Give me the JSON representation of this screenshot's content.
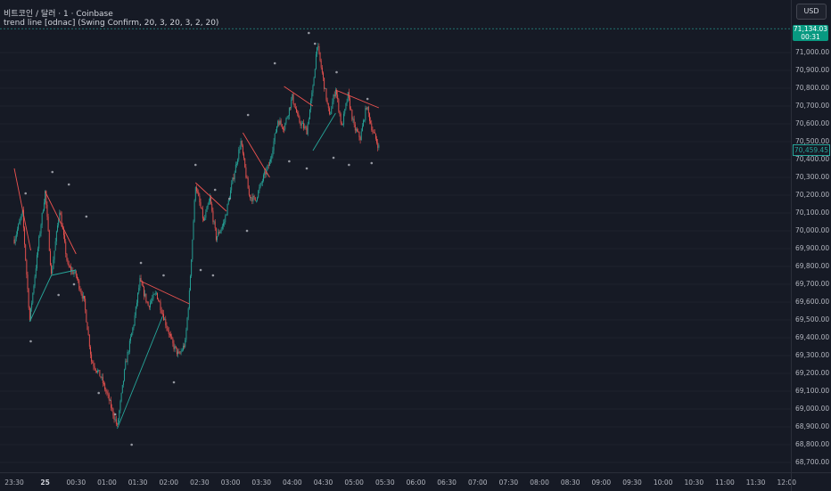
{
  "legend": {
    "symbol": "비트코인 / 달러 · 1 · Coinbase",
    "indicator": "trend line [odnac] (Swing Confirm, 20, 3, 20, 3, 2, 20)"
  },
  "currency_button": "USD",
  "price_badge": {
    "price": "71,134.03",
    "countdown": "00:31"
  },
  "last_price_badge": "70,459.45",
  "colors": {
    "background": "#161a25",
    "up": "#26a69a",
    "down": "#ef5350",
    "marker": "#9598a1",
    "badge": "#089981"
  },
  "price_axis": {
    "ticks": [
      "71,000.00",
      "70,900.00",
      "70,800.00",
      "70,700.00",
      "70,600.00",
      "70,500.00",
      "70,400.00",
      "70,300.00",
      "70,200.00",
      "70,100.00",
      "70,000.00",
      "69,900.00",
      "69,800.00",
      "69,700.00",
      "69,600.00",
      "69,500.00",
      "69,400.00",
      "69,300.00",
      "69,200.00",
      "69,100.00",
      "69,000.00",
      "68,900.00",
      "68,800.00",
      "68,700.00"
    ]
  },
  "time_axis": {
    "ticks": [
      "23:30",
      "25",
      "00:30",
      "01:00",
      "01:30",
      "02:00",
      "02:30",
      "03:00",
      "03:30",
      "04:00",
      "04:30",
      "05:00",
      "05:30",
      "06:00",
      "06:30",
      "07:00",
      "07:30",
      "08:00",
      "08:30",
      "09:00",
      "09:30",
      "10:00",
      "10:30",
      "11:00",
      "11:30",
      "12:00"
    ],
    "bold_tick": "25"
  },
  "chart_data": {
    "type": "candlestick",
    "ylim": [
      68650,
      71150
    ],
    "start_time": "23:30",
    "minutes_per_tick": 30,
    "price_path": [
      [
        0,
        69950
      ],
      [
        8,
        70100
      ],
      [
        15,
        69500
      ],
      [
        24,
        69950
      ],
      [
        30,
        70220
      ],
      [
        36,
        69750
      ],
      [
        44,
        70120
      ],
      [
        52,
        69800
      ],
      [
        60,
        69750
      ],
      [
        68,
        69600
      ],
      [
        75,
        69270
      ],
      [
        84,
        69180
      ],
      [
        92,
        69050
      ],
      [
        100,
        68900
      ],
      [
        108,
        69250
      ],
      [
        116,
        69480
      ],
      [
        122,
        69720
      ],
      [
        130,
        69580
      ],
      [
        138,
        69650
      ],
      [
        146,
        69500
      ],
      [
        154,
        69360
      ],
      [
        160,
        69300
      ],
      [
        166,
        69370
      ],
      [
        170,
        69650
      ],
      [
        176,
        70260
      ],
      [
        184,
        70050
      ],
      [
        190,
        70180
      ],
      [
        196,
        69960
      ],
      [
        204,
        70050
      ],
      [
        212,
        70280
      ],
      [
        220,
        70500
      ],
      [
        228,
        70200
      ],
      [
        234,
        70170
      ],
      [
        242,
        70300
      ],
      [
        248,
        70380
      ],
      [
        256,
        70620
      ],
      [
        262,
        70580
      ],
      [
        270,
        70750
      ],
      [
        276,
        70620
      ],
      [
        284,
        70560
      ],
      [
        290,
        70800
      ],
      [
        294,
        71050
      ],
      [
        300,
        70850
      ],
      [
        306,
        70640
      ],
      [
        312,
        70800
      ],
      [
        318,
        70580
      ],
      [
        324,
        70760
      ],
      [
        330,
        70580
      ],
      [
        336,
        70520
      ],
      [
        342,
        70700
      ],
      [
        348,
        70560
      ],
      [
        354,
        70470
      ]
    ],
    "swing_highs": [
      [
        11,
        70210
      ],
      [
        37,
        70330
      ],
      [
        53,
        70260
      ],
      [
        70,
        70080
      ],
      [
        123,
        69820
      ],
      [
        145,
        69750
      ],
      [
        176,
        70370
      ],
      [
        195,
        70230
      ],
      [
        209,
        70180
      ],
      [
        227,
        70650
      ],
      [
        253,
        70940
      ],
      [
        286,
        71110
      ],
      [
        292,
        71050
      ],
      [
        313,
        70890
      ],
      [
        343,
        70740
      ]
    ],
    "swing_lows": [
      [
        16,
        69380
      ],
      [
        43,
        69640
      ],
      [
        58,
        69700
      ],
      [
        82,
        69090
      ],
      [
        98,
        68970
      ],
      [
        114,
        68800
      ],
      [
        155,
        69150
      ],
      [
        181,
        69780
      ],
      [
        193,
        69750
      ],
      [
        226,
        70000
      ],
      [
        267,
        70390
      ],
      [
        284,
        70350
      ],
      [
        310,
        70410
      ],
      [
        325,
        70370
      ],
      [
        347,
        70380
      ]
    ],
    "trend_lines": [
      {
        "color": "down",
        "points": [
          [
            0,
            70350
          ],
          [
            16,
            69890
          ]
        ]
      },
      {
        "color": "down",
        "points": [
          [
            30,
            70220
          ],
          [
            60,
            69870
          ]
        ]
      },
      {
        "color": "up",
        "points": [
          [
            15,
            69490
          ],
          [
            36,
            69750
          ]
        ]
      },
      {
        "color": "up",
        "points": [
          [
            36,
            69750
          ],
          [
            60,
            69780
          ]
        ]
      },
      {
        "color": "down",
        "points": [
          [
            122,
            69720
          ],
          [
            170,
            69590
          ]
        ]
      },
      {
        "color": "up",
        "points": [
          [
            100,
            68890
          ],
          [
            144,
            69520
          ]
        ]
      },
      {
        "color": "down",
        "points": [
          [
            176,
            70270
          ],
          [
            206,
            70110
          ]
        ]
      },
      {
        "color": "down",
        "points": [
          [
            222,
            70550
          ],
          [
            248,
            70300
          ]
        ]
      },
      {
        "color": "down",
        "points": [
          [
            262,
            70810
          ],
          [
            290,
            70700
          ]
        ]
      },
      {
        "color": "up",
        "points": [
          [
            290,
            70450
          ],
          [
            312,
            70660
          ]
        ]
      },
      {
        "color": "down",
        "points": [
          [
            312,
            70790
          ],
          [
            354,
            70690
          ]
        ]
      }
    ]
  }
}
